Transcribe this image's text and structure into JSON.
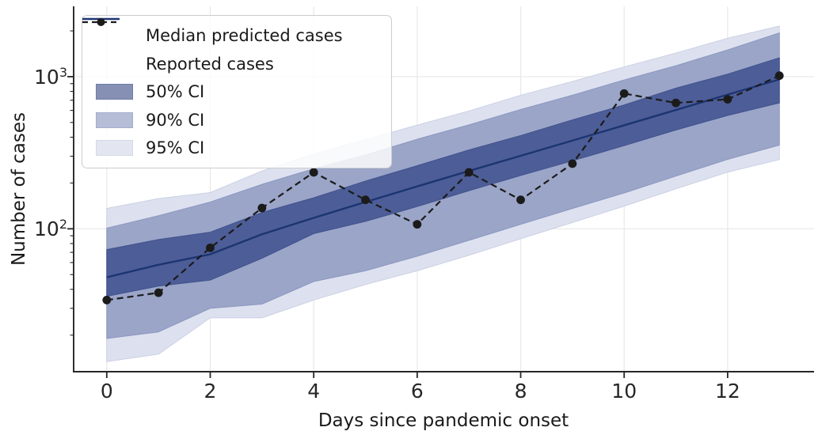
{
  "colors": {
    "background": "#ffffff",
    "median_line": "#1c3572",
    "reported": "#1b1b1b",
    "grid": "#e8e8e8",
    "spine": "#262626",
    "tick": "#262626",
    "legend_border": "#cccccc"
  },
  "legend": {
    "items": [
      {
        "label": "Median predicted cases",
        "sample": "line"
      },
      {
        "label": "Reported cases",
        "sample": "dashed-marker"
      },
      {
        "label": "50% CI",
        "sample": "patch",
        "fill": "#8690b4",
        "edge": "#6f7da9"
      },
      {
        "label": "90% CI",
        "sample": "patch",
        "fill": "#b6bed7",
        "edge": "#a2accc"
      },
      {
        "label": "95% CI",
        "sample": "patch",
        "fill": "#e3e6f1",
        "edge": "#d3d9e9"
      }
    ]
  },
  "chart_data": {
    "type": "line",
    "title": "",
    "xlabel": "Days since pandemic onset",
    "ylabel": "Number of cases",
    "y_scale": "log",
    "grid": true,
    "legend_position": "upper-left",
    "x": [
      0,
      1,
      2,
      3,
      4,
      5,
      6,
      7,
      8,
      9,
      10,
      11,
      12,
      13
    ],
    "series": [
      {
        "name": "Median predicted cases",
        "style": "solid",
        "values": [
          48,
          58,
          68,
          92,
          118,
          150,
          190,
          240,
          302,
          380,
          479,
          604,
          762,
          960
        ]
      },
      {
        "name": "Reported cases",
        "style": "dashed-markers",
        "values": [
          34,
          38,
          75,
          137,
          235,
          155,
          107,
          235,
          155,
          268,
          775,
          672,
          710,
          1015
        ]
      }
    ],
    "bands": [
      {
        "name": "95% CI",
        "lower": [
          13.4,
          15,
          26,
          26,
          34,
          43,
          53,
          67,
          86,
          110,
          141,
          183,
          236,
          285
        ],
        "upper": [
          136,
          158,
          173,
          240,
          310,
          385,
          480,
          595,
          755,
          930,
          1160,
          1430,
          1790,
          2150
        ],
        "fill": "#dde1ef",
        "edge": "#cad0e4"
      },
      {
        "name": "90% CI",
        "lower": [
          19,
          21,
          30,
          32,
          45,
          53,
          66,
          84,
          107,
          136,
          172,
          222,
          286,
          355
        ],
        "upper": [
          101,
          122,
          150,
          196,
          248,
          306,
          388,
          482,
          608,
          756,
          952,
          1180,
          1500,
          1940
        ],
        "fill": "#9aa5c8",
        "edge": "#8c97c0"
      },
      {
        "name": "50% CI",
        "lower": [
          36,
          42,
          46,
          64,
          93,
          112,
          140,
          178,
          224,
          280,
          352,
          446,
          556,
          672
        ],
        "upper": [
          73,
          85,
          95,
          128,
          160,
          206,
          260,
          330,
          410,
          520,
          652,
          840,
          1040,
          1330
        ],
        "fill": "#4d5d97",
        "edge": "#41518c"
      }
    ],
    "x_ticks_major": [
      0,
      2,
      4,
      6,
      8,
      10,
      12
    ],
    "y_ticks_major": [
      100,
      1000
    ],
    "xlim": [
      -0.64,
      13.67
    ],
    "ylim": [
      11.5,
      2900
    ]
  }
}
